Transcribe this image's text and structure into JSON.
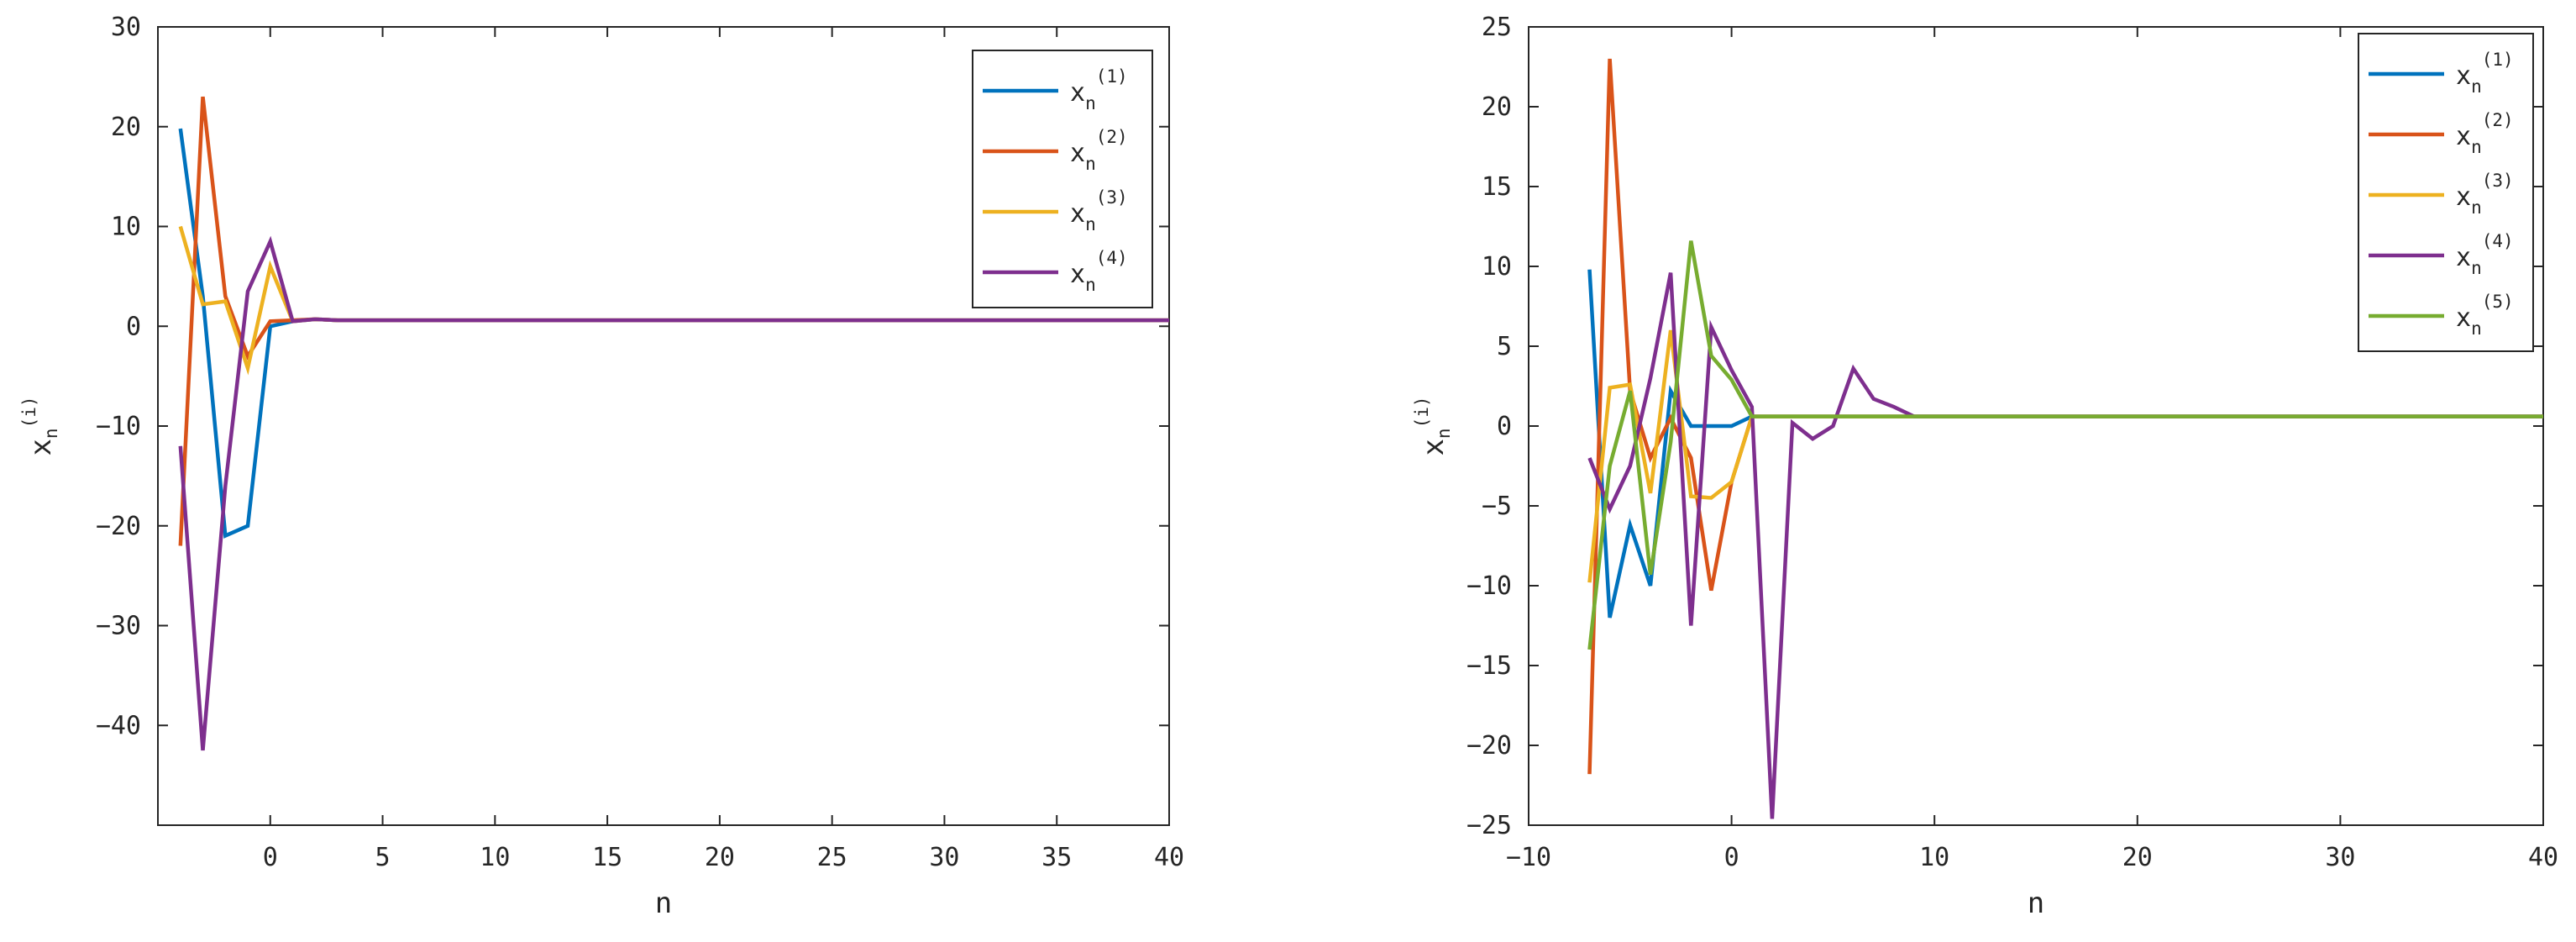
{
  "chart_data": [
    {
      "type": "line",
      "xlabel": "n",
      "ylabel_base": "x",
      "ylabel_sub": "n",
      "ylabel_sup": "(i)",
      "xlim": [
        -5,
        40
      ],
      "ylim": [
        -50,
        30
      ],
      "xticks": [
        0,
        5,
        10,
        15,
        20,
        25,
        30,
        35,
        40
      ],
      "yticks": [
        -40,
        -30,
        -20,
        -10,
        0,
        10,
        20,
        30
      ],
      "legend_position": "top-right",
      "grid": false,
      "series": [
        {
          "label_base": "x",
          "label_sub": "n",
          "label_sup": "(1)",
          "color": "#0072BD",
          "x": [
            -4,
            -3,
            -2,
            -1,
            0,
            1,
            2,
            3,
            40
          ],
          "y": [
            19.8,
            3,
            -21,
            -20,
            0,
            0.5,
            0.7,
            0.6,
            0.6
          ]
        },
        {
          "label_base": "x",
          "label_sub": "n",
          "label_sup": "(2)",
          "color": "#D95319",
          "x": [
            -4,
            -3,
            -2,
            -1,
            0,
            1,
            2,
            3,
            40
          ],
          "y": [
            -22,
            23,
            3,
            -3,
            0.5,
            0.6,
            0.7,
            0.6,
            0.6
          ]
        },
        {
          "label_base": "x",
          "label_sub": "n",
          "label_sup": "(3)",
          "color": "#EDB120",
          "x": [
            -4,
            -3,
            -2,
            -1,
            0,
            1,
            2,
            3,
            40
          ],
          "y": [
            10,
            2.2,
            2.5,
            -4.2,
            6,
            0.5,
            0.7,
            0.6,
            0.6
          ]
        },
        {
          "label_base": "x",
          "label_sub": "n",
          "label_sup": "(4)",
          "color": "#7E2F8E",
          "x": [
            -4,
            -3,
            -2,
            -1,
            0,
            1,
            2,
            3,
            40
          ],
          "y": [
            -12,
            -42.5,
            -16,
            3.5,
            8.5,
            0.5,
            0.7,
            0.6,
            0.6
          ]
        }
      ]
    },
    {
      "type": "line",
      "xlabel": "n",
      "ylabel_base": "x",
      "ylabel_sub": "n",
      "ylabel_sup": "(i)",
      "xlim": [
        -10,
        40
      ],
      "ylim": [
        -25,
        25
      ],
      "xticks": [
        -10,
        0,
        10,
        20,
        30,
        40
      ],
      "yticks": [
        -25,
        -20,
        -15,
        -10,
        -5,
        0,
        5,
        10,
        15,
        20,
        25
      ],
      "legend_position": "top-right",
      "grid": false,
      "series": [
        {
          "label_base": "x",
          "label_sub": "n",
          "label_sup": "(1)",
          "color": "#0072BD",
          "x": [
            -7,
            -6,
            -5,
            -4,
            -3,
            -2,
            -1,
            0,
            1,
            40
          ],
          "y": [
            9.8,
            -12,
            -6.2,
            -10,
            2.2,
            0,
            0,
            0,
            0.6,
            0.6
          ]
        },
        {
          "label_base": "x",
          "label_sub": "n",
          "label_sup": "(2)",
          "color": "#D95319",
          "x": [
            -7,
            -6,
            -5,
            -4,
            -3,
            -2,
            -1,
            0,
            1,
            40
          ],
          "y": [
            -21.8,
            23,
            2.2,
            -2,
            0.5,
            -2,
            -10.3,
            -3.5,
            0.6,
            0.6
          ]
        },
        {
          "label_base": "x",
          "label_sub": "n",
          "label_sup": "(3)",
          "color": "#EDB120",
          "x": [
            -7,
            -6,
            -5,
            -4,
            -3,
            -2,
            -1,
            0,
            1,
            40
          ],
          "y": [
            -9.8,
            2.4,
            2.6,
            -4.2,
            6,
            -4.4,
            -4.5,
            -3.5,
            0.6,
            0.6
          ]
        },
        {
          "label_base": "x",
          "label_sub": "n",
          "label_sup": "(4)",
          "color": "#7E2F8E",
          "x": [
            -7,
            -6,
            -5,
            -4,
            -3,
            -2,
            -1,
            0,
            1,
            2,
            3,
            4,
            5,
            6,
            7,
            8,
            9,
            40
          ],
          "y": [
            -2,
            -5.2,
            -2.5,
            3,
            9.6,
            -12.5,
            6.2,
            3.5,
            1.2,
            -24.6,
            0.2,
            -0.8,
            0,
            3.6,
            1.7,
            1.2,
            0.6,
            0.6
          ]
        },
        {
          "label_base": "x",
          "label_sub": "n",
          "label_sup": "(5)",
          "color": "#77AC30",
          "x": [
            -7,
            -6,
            -5,
            -4,
            -3,
            -2,
            -1,
            0,
            1,
            40
          ],
          "y": [
            -14,
            -2.5,
            2.2,
            -9.3,
            -1,
            11.6,
            4.4,
            2.9,
            0.6,
            0.6
          ]
        }
      ]
    }
  ]
}
